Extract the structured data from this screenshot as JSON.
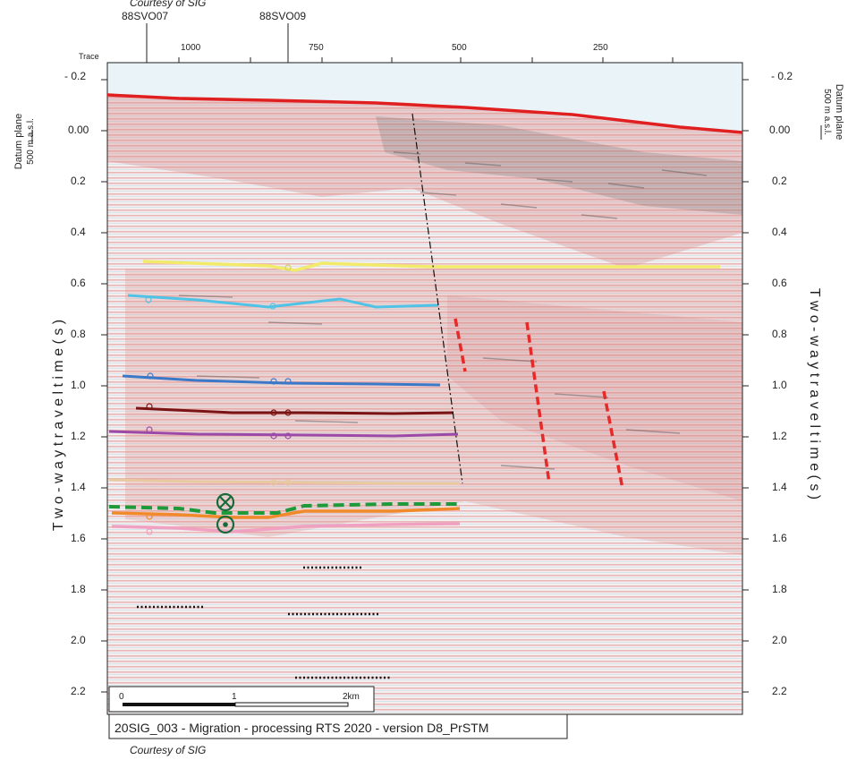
{
  "header": {
    "courtesy_top": "Courtesy of SIG",
    "well_1": "88SVO07",
    "well_2": "88SVO09",
    "trace_label": "Trace",
    "trace_ticks": [
      "1000",
      "750",
      "500",
      "250"
    ]
  },
  "axes": {
    "left_label": "T w o - w a y   t r a v e l t i m e   ( s )",
    "right_label": "T w o - w a y   t r a v e l t i m e   ( s )",
    "datum_line1": "Datum plane",
    "datum_line2": "500 m a.s.l.",
    "time_ticks": [
      "- 0.2",
      "0.00",
      "0.2",
      "0.4",
      "0.6",
      "0.8",
      "1.0",
      "1.2",
      "1.4",
      "1.6",
      "1.8",
      "2.0",
      "2.2"
    ]
  },
  "scale_bar": {
    "labels": [
      "0",
      "1",
      "2km"
    ]
  },
  "caption": "20SIG_003 - Migration - processing RTS 2020 - version D8_PrSTM",
  "courtesy_bottom": "Courtesy of SIG",
  "colors": {
    "topography": "#e02020",
    "horizon_yellow": "#f2ea6a",
    "horizon_cyan": "#4fc3e6",
    "horizon_blue": "#3a78c8",
    "horizon_maroon": "#7a1414",
    "horizon_purple": "#9b4aa8",
    "horizon_tan": "#e8c9a0",
    "horizon_orange": "#f08a2a",
    "horizon_pink": "#f0a0c0",
    "horizon_green_dashed": "#1f9a3a",
    "fault_red": "#e52a2a",
    "seismic_red": "#e08080",
    "seismic_dark": "#555555",
    "seismic_blue": "#b8d8ec"
  },
  "icons": {
    "well_cross": "circle-cross-icon",
    "well_dot": "circle-dot-icon"
  }
}
